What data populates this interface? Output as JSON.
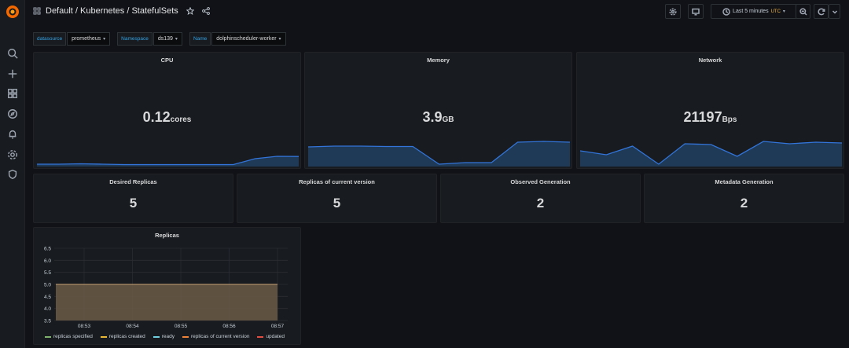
{
  "header": {
    "title": "Default / Kubernetes / StatefulSets",
    "time_range": "Last 5 minutes",
    "timezone": "UTC"
  },
  "variables": [
    {
      "label": "datasource",
      "value": "prometheus"
    },
    {
      "label": "Namespace",
      "value": "ds139"
    },
    {
      "label": "Name",
      "value": "dolphinscheduler-worker"
    }
  ],
  "stats": {
    "cpu": {
      "title": "CPU",
      "value": "0.12",
      "unit": "cores",
      "spark": [
        0.3,
        0.3,
        0.35,
        0.3,
        0.25,
        0.25,
        0.25,
        0.25,
        0.25,
        0.25,
        1.0,
        1.3,
        1.28
      ]
    },
    "memory": {
      "title": "Memory",
      "value": "3.9",
      "unit": "GB",
      "spark": [
        2.5,
        2.6,
        2.6,
        2.55,
        2.55,
        0.3,
        0.5,
        0.5,
        3.1,
        3.2,
        3.1
      ]
    },
    "network": {
      "title": "Network",
      "value": "21197",
      "unit": "Bps",
      "spark": [
        2.0,
        1.5,
        2.6,
        0.3,
        2.9,
        2.8,
        1.3,
        3.2,
        2.9,
        3.1,
        3.0
      ]
    }
  },
  "small_stats": [
    {
      "title": "Desired Replicas",
      "value": "5"
    },
    {
      "title": "Replicas of current version",
      "value": "5"
    },
    {
      "title": "Observed Generation",
      "value": "2"
    },
    {
      "title": "Metadata Generation",
      "value": "2"
    }
  ],
  "colors": {
    "accent_blue": "#33a2e5",
    "spark_line": "#3274d9",
    "spark_fill": "#1f3a57",
    "replica_fill": "#6b5a47",
    "replica_line": "#c7a073",
    "utc": "#f5b73d"
  },
  "chart_data": {
    "type": "area",
    "title": "Replicas",
    "x": [
      "08:53",
      "08:54",
      "08:55",
      "08:56",
      "08:57"
    ],
    "yticks": [
      3.5,
      4.0,
      4.5,
      5.0,
      5.5,
      6.0,
      6.5
    ],
    "ylim": [
      3.5,
      6.5
    ],
    "grid": true,
    "legend_position": "bottom-left",
    "series": [
      {
        "name": "replicas specified",
        "values": [
          5,
          5,
          5,
          5,
          5
        ],
        "color": "#7eb26d"
      },
      {
        "name": "replicas created",
        "values": [
          5,
          5,
          5,
          5,
          5
        ],
        "color": "#eab839"
      },
      {
        "name": "ready",
        "values": [
          5,
          5,
          5,
          5,
          5
        ],
        "color": "#6ed0e0"
      },
      {
        "name": "replicas of current version",
        "values": [
          5,
          5,
          5,
          5,
          5
        ],
        "color": "#ef843c"
      },
      {
        "name": "updated",
        "values": [
          5,
          5,
          5,
          5,
          5
        ],
        "color": "#e24d42"
      }
    ]
  }
}
